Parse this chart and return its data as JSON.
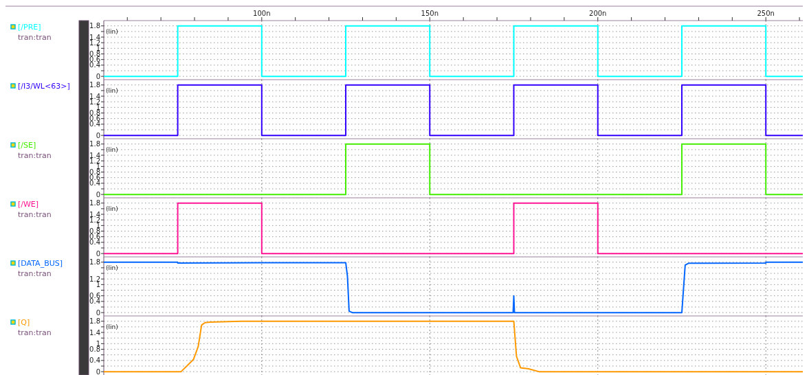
{
  "chart_data": [
    {
      "type": "line",
      "subtitle": "tran:tran",
      "legend": "left",
      "grid": true,
      "annotations": [
        "(lin)"
      ],
      "xlim": [
        53,
        261
      ],
      "ylim": [
        -0.07,
        1.94
      ],
      "xticks": [
        {
          "value": 60,
          "label": null
        },
        {
          "value": 70,
          "label": null
        },
        {
          "value": 80,
          "label": null
        },
        {
          "value": 90,
          "label": null
        },
        {
          "value": 100,
          "label": "100n"
        },
        {
          "value": 110,
          "label": null
        },
        {
          "value": 120,
          "label": null
        },
        {
          "value": 130,
          "label": null
        },
        {
          "value": 140,
          "label": null
        },
        {
          "value": 150,
          "label": "150n"
        },
        {
          "value": 160,
          "label": null
        },
        {
          "value": 170,
          "label": null
        },
        {
          "value": 180,
          "label": null
        },
        {
          "value": 190,
          "label": null
        },
        {
          "value": 200,
          "label": "200n"
        },
        {
          "value": 210,
          "label": null
        },
        {
          "value": 220,
          "label": null
        },
        {
          "value": 230,
          "label": null
        },
        {
          "value": 240,
          "label": null
        },
        {
          "value": 250,
          "label": "250n"
        },
        {
          "value": 260,
          "label": null
        }
      ],
      "yticks": [
        0,
        {
          "value": 0.2,
          "label": null
        },
        0.4,
        0.6,
        0.8,
        1,
        1.2,
        1.4,
        {
          "value": 1.6,
          "label": null
        },
        1.8
      ],
      "series": [
        {
          "name": "[/PRE]",
          "color": "#00ffff",
          "x": [
            53,
            75,
            75,
            100,
            100,
            125,
            125,
            150,
            150,
            175,
            175,
            200,
            200,
            225,
            225,
            250,
            250,
            261
          ],
          "values": [
            0,
            0,
            1.8,
            1.8,
            0,
            0,
            1.8,
            1.8,
            0,
            0,
            1.8,
            1.8,
            0,
            0,
            1.8,
            1.8,
            0,
            0
          ]
        }
      ]
    },
    {
      "type": "line",
      "legend": "left",
      "grid": true,
      "tick_labels": "y",
      "annotations": [
        "(lin)"
      ],
      "xlim": [
        53,
        261
      ],
      "ylim": [
        -0.07,
        1.94
      ],
      "xticks": [
        100,
        150,
        200,
        250
      ],
      "yticks": [
        0,
        {
          "value": 0.2,
          "label": null
        },
        0.4,
        0.6,
        0.8,
        1,
        1.2,
        1.4,
        {
          "value": 1.6,
          "label": null
        },
        1.8
      ],
      "series": [
        {
          "name": "[/I3/WL<63>]",
          "color": "#3300ff",
          "x": [
            53,
            75,
            75,
            100,
            100,
            125,
            125,
            150,
            150,
            175,
            175,
            200,
            200,
            225,
            225,
            250,
            250,
            261
          ],
          "values": [
            0,
            0,
            1.8,
            1.8,
            0,
            0,
            1.8,
            1.8,
            0,
            0,
            1.8,
            1.8,
            0,
            0,
            1.8,
            1.8,
            0,
            0
          ]
        }
      ]
    },
    {
      "type": "line",
      "subtitle": "tran:tran",
      "legend": "left",
      "grid": true,
      "tick_labels": "y",
      "annotations": [
        "(lin)"
      ],
      "xlim": [
        53,
        261
      ],
      "ylim": [
        -0.07,
        1.94
      ],
      "xticks": [
        100,
        150,
        200,
        250
      ],
      "yticks": [
        0,
        {
          "value": 0.2,
          "label": null
        },
        0.4,
        0.6,
        0.8,
        1,
        1.2,
        1.4,
        {
          "value": 1.6,
          "label": null
        },
        1.8
      ],
      "series": [
        {
          "name": "[/SE]",
          "color": "#44ee00",
          "x": [
            53,
            125,
            125,
            150,
            150,
            225,
            225,
            250,
            250,
            261
          ],
          "values": [
            0,
            0,
            1.8,
            1.8,
            0,
            0,
            1.8,
            1.8,
            0,
            0
          ]
        }
      ]
    },
    {
      "type": "line",
      "subtitle": "tran:tran",
      "legend": "left",
      "grid": true,
      "tick_labels": "y",
      "annotations": [
        "(lin)"
      ],
      "xlim": [
        53,
        261
      ],
      "ylim": [
        -0.07,
        1.94
      ],
      "xticks": [
        100,
        150,
        200,
        250
      ],
      "yticks": [
        0,
        {
          "value": 0.2,
          "label": null
        },
        0.4,
        0.6,
        0.8,
        1,
        1.2,
        1.4,
        {
          "value": 1.6,
          "label": null
        },
        1.8
      ],
      "series": [
        {
          "name": "[/WE]",
          "color": "#ff1493",
          "x": [
            53,
            75,
            75,
            100,
            100,
            175,
            175,
            200,
            200,
            261
          ],
          "values": [
            0,
            0,
            1.8,
            1.8,
            0,
            0,
            1.8,
            1.8,
            0,
            0
          ]
        }
      ]
    },
    {
      "type": "line",
      "subtitle": "tran:tran",
      "legend": "left",
      "grid": true,
      "tick_labels": "y",
      "annotations": [
        "(lin)"
      ],
      "xlim": [
        53,
        261
      ],
      "ylim": [
        -0.07,
        1.94
      ],
      "xticks": [
        100,
        150,
        200,
        250
      ],
      "yticks": [
        0,
        {
          "value": 0.2,
          "label": null
        },
        0.4,
        0.6,
        {
          "value": 0.8,
          "label": null
        },
        1,
        1.2,
        {
          "value": 1.4,
          "label": null
        },
        {
          "value": 1.6,
          "label": null
        },
        1.8
      ],
      "series": [
        {
          "name": "[DATA_BUS]",
          "color": "#0066ff",
          "x": [
            53,
            75,
            75,
            100,
            125,
            125.5,
            126,
            127,
            174.8,
            175,
            175.2,
            225,
            226,
            227,
            250,
            250,
            261
          ],
          "values": [
            1.8,
            1.8,
            1.77,
            1.78,
            1.78,
            1.3,
            0.05,
            0,
            0,
            0.6,
            0,
            0,
            1.7,
            1.76,
            1.77,
            1.8,
            1.8
          ]
        }
      ]
    },
    {
      "type": "line",
      "subtitle": "tran:tran",
      "legend": "left",
      "grid": true,
      "tick_labels": "y",
      "annotations": [
        "(lin)"
      ],
      "xlim": [
        53,
        261
      ],
      "ylim": [
        -0.07,
        1.94
      ],
      "xticks": [
        100,
        150,
        200,
        250
      ],
      "yticks": [
        0,
        {
          "value": 0.2,
          "label": null
        },
        0.4,
        {
          "value": 0.6,
          "label": null
        },
        0.8,
        1,
        {
          "value": 1.2,
          "label": null
        },
        1.4,
        {
          "value": 1.6,
          "label": null
        },
        1.8
      ],
      "series": [
        {
          "name": "[Q]",
          "color": "#ff9900",
          "x": [
            53,
            76,
            79.7,
            81.1,
            82.1,
            83.1,
            84.7,
            93.8,
            175,
            175.8,
            177,
            179.4,
            182.5,
            261
          ],
          "values": [
            0,
            0,
            0.44,
            0.9,
            1.66,
            1.75,
            1.77,
            1.8,
            1.8,
            0.55,
            0.14,
            0.1,
            0,
            0
          ]
        }
      ]
    }
  ]
}
